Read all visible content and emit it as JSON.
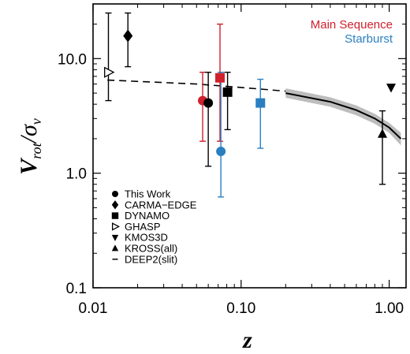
{
  "chart_data": {
    "type": "scatter",
    "x_scale": "log",
    "y_scale": "log",
    "xlim": [
      0.01,
      1.3
    ],
    "ylim": [
      0.1,
      30
    ],
    "xlabel": "z",
    "ylabel": "V_rot/σ_v",
    "ylabel_main": "V",
    "ylabel_sub": "rot",
    "ylabel_sep": "/σ",
    "ylabel_sub2": "v",
    "x_ticks": [
      {
        "value": 0.01,
        "label": "0.01"
      },
      {
        "value": 0.1,
        "label": "0.10"
      },
      {
        "value": 1.0,
        "label": "1.00"
      }
    ],
    "y_ticks": [
      {
        "value": 0.1,
        "label": "0.1"
      },
      {
        "value": 1.0,
        "label": "1.0"
      },
      {
        "value": 10.0,
        "label": "10.0"
      }
    ],
    "group_labels": [
      {
        "text": "Main Sequence",
        "color": "#d0202c"
      },
      {
        "text": "Starburst",
        "color": "#2a7fc0"
      }
    ],
    "legend": [
      {
        "marker": "circle",
        "label": "This Work"
      },
      {
        "marker": "diamond",
        "label": "CARMA−EDGE"
      },
      {
        "marker": "square",
        "label": "DYNAMO"
      },
      {
        "marker": "triangle-right-open",
        "label": "GHASP"
      },
      {
        "marker": "triangle-down",
        "label": "KMOS3D"
      },
      {
        "marker": "triangle-up",
        "label": "KROSS(all)"
      },
      {
        "marker": "dash",
        "label": "DEEP2(slit)"
      }
    ],
    "points": [
      {
        "survey": "GHASP",
        "marker": "triangle-right-open",
        "color": "#000000",
        "x": 0.0127,
        "y": 7.6,
        "y_low": 4.3,
        "y_high": 25
      },
      {
        "survey": "CARMA-EDGE",
        "marker": "diamond",
        "color": "#000000",
        "x": 0.0172,
        "y": 15.8,
        "y_low": 8.5,
        "y_high": 25
      },
      {
        "survey": "This Work",
        "marker": "circle",
        "color": "#d0202c",
        "x": 0.055,
        "y": 4.3,
        "y_low": 1.9,
        "y_high": 7.6
      },
      {
        "survey": "This Work",
        "marker": "circle",
        "color": "#000000",
        "x": 0.06,
        "y": 4.1,
        "y_low": 1.15,
        "y_high": 7.6
      },
      {
        "survey": "DYNAMO",
        "marker": "square",
        "color": "#d0202c",
        "x": 0.072,
        "y": 6.8,
        "y_low": 1.9,
        "y_high": 20
      },
      {
        "survey": "This Work",
        "marker": "circle",
        "color": "#2a7fc0",
        "x": 0.073,
        "y": 1.55,
        "y_low": 0.62,
        "y_high": 7.6
      },
      {
        "survey": "DYNAMO",
        "marker": "square",
        "color": "#000000",
        "x": 0.081,
        "y": 5.1,
        "y_low": 2.4,
        "y_high": 7.6
      },
      {
        "survey": "DYNAMO",
        "marker": "square",
        "color": "#2a7fc0",
        "x": 0.135,
        "y": 4.1,
        "y_low": 1.65,
        "y_high": 6.6
      },
      {
        "survey": "KROSS(all)",
        "marker": "triangle-up",
        "color": "#000000",
        "x": 0.9,
        "y": 2.2,
        "y_low": 0.8,
        "y_high": 3.5
      },
      {
        "survey": "KMOS3D",
        "marker": "triangle-down",
        "color": "#000000",
        "x": 1.03,
        "y": 5.6
      }
    ],
    "dashed_trend": {
      "name": "DEEP2(slit)",
      "x": [
        0.0125,
        0.05,
        0.1,
        0.2
      ],
      "y": [
        6.5,
        6.0,
        5.6,
        5.2
      ]
    },
    "solid_trend": {
      "x": [
        0.2,
        0.4,
        0.6,
        0.8,
        1.0,
        1.2
      ],
      "y": [
        5.0,
        4.2,
        3.55,
        3.0,
        2.5,
        2.0
      ],
      "y_low": [
        4.55,
        3.8,
        3.2,
        2.7,
        2.25,
        1.75
      ],
      "y_high": [
        5.5,
        4.6,
        3.9,
        3.3,
        2.75,
        2.25
      ]
    }
  }
}
